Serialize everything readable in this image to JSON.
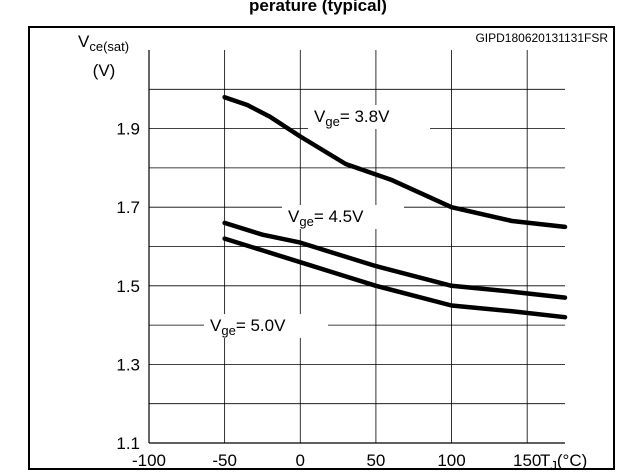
{
  "chart_data": {
    "type": "line",
    "title": "perature (typical)",
    "code": "GIPD180620131131FSR",
    "ylabel": {
      "main": "V",
      "sub": "ce(sat)",
      "unit": "(V)"
    },
    "xlabel": {
      "main": "T",
      "sub": "J",
      "unit": "(°C)"
    },
    "xlim": [
      -100,
      175
    ],
    "ylim": [
      1.1,
      2.1
    ],
    "x_ticks": [
      -100,
      -50,
      0,
      50,
      100,
      150
    ],
    "x_tick_labels": [
      "-100",
      "-50",
      "0",
      "50",
      "100",
      "150"
    ],
    "y_ticks": [
      1.1,
      1.3,
      1.5,
      1.7,
      1.9
    ],
    "y_tick_labels": [
      "1.1",
      "1.3",
      "1.5",
      "1.7",
      "1.9"
    ],
    "grid": true,
    "series": [
      {
        "name": {
          "main": "V",
          "sub": "ge",
          "value": "= 3.8V"
        },
        "x": [
          -50,
          -35,
          -20,
          0,
          30,
          60,
          100,
          140,
          175
        ],
        "y": [
          1.98,
          1.96,
          1.93,
          1.88,
          1.81,
          1.77,
          1.7,
          1.665,
          1.65
        ]
      },
      {
        "name": {
          "main": "V",
          "sub": "ge",
          "value": "= 4.5V"
        },
        "x": [
          -50,
          -25,
          0,
          25,
          50,
          100,
          140,
          175
        ],
        "y": [
          1.66,
          1.63,
          1.61,
          1.58,
          1.55,
          1.5,
          1.485,
          1.47
        ]
      },
      {
        "name": {
          "main": "V",
          "sub": "ge",
          "value": "= 5.0V"
        },
        "x": [
          -50,
          -25,
          0,
          25,
          50,
          100,
          140,
          175
        ],
        "y": [
          1.62,
          1.59,
          1.56,
          1.53,
          1.5,
          1.45,
          1.435,
          1.42
        ]
      }
    ]
  }
}
